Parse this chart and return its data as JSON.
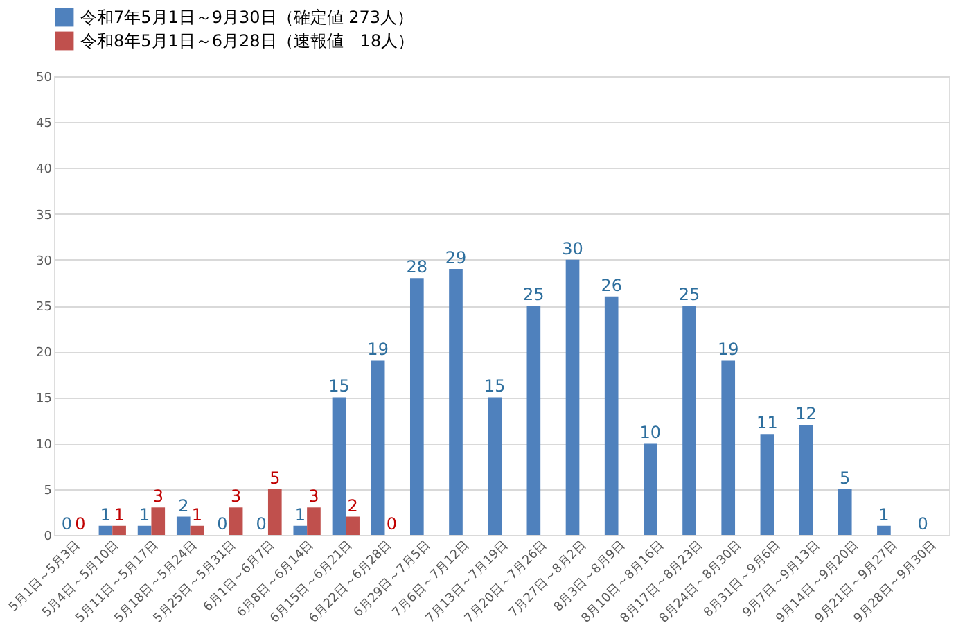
{
  "chart_data": {
    "type": "bar",
    "categories": [
      "5月1日～5月3日",
      "5月4日～5月10日",
      "5月11日～5月17日",
      "5月18日～5月24日",
      "5月25日～5月31日",
      "6月1日～6月7日",
      "6月8日～6月14日",
      "6月15日～6月21日",
      "6月22日～6月28日",
      "6月29日～7月5日",
      "7月6日～7月12日",
      "7月13日～7月19日",
      "7月20日～7月26日",
      "7月27日～8月2日",
      "8月3日～8月9日",
      "8月10日～8月16日",
      "8月17日～8月23日",
      "8月24日～8月30日",
      "8月31日～9月6日",
      "9月7日～9月13日",
      "9月14日～9月20日",
      "9月21日～9月27日",
      "9月28日～9月30日"
    ],
    "series": [
      {
        "name": "令和7年5月1日～9月30日（確定値 273人）",
        "color": "#4f81bd",
        "values": [
          0,
          1,
          1,
          2,
          0,
          0,
          1,
          15,
          19,
          28,
          29,
          15,
          25,
          30,
          26,
          10,
          25,
          19,
          11,
          12,
          5,
          1,
          0
        ]
      },
      {
        "name": "令和8年5月1日～6月28日（速報値　18人）",
        "color": "#c0504d",
        "values": [
          0,
          1,
          3,
          1,
          3,
          5,
          3,
          2,
          0,
          null,
          null,
          null,
          null,
          null,
          null,
          null,
          null,
          null,
          null,
          null,
          null,
          null,
          null
        ]
      }
    ],
    "ylim": [
      0,
      50
    ],
    "yticks": [
      0,
      5,
      10,
      15,
      20,
      25,
      30,
      35,
      40,
      45,
      50
    ],
    "grid": "y",
    "legend": "top",
    "data_labels": true
  }
}
